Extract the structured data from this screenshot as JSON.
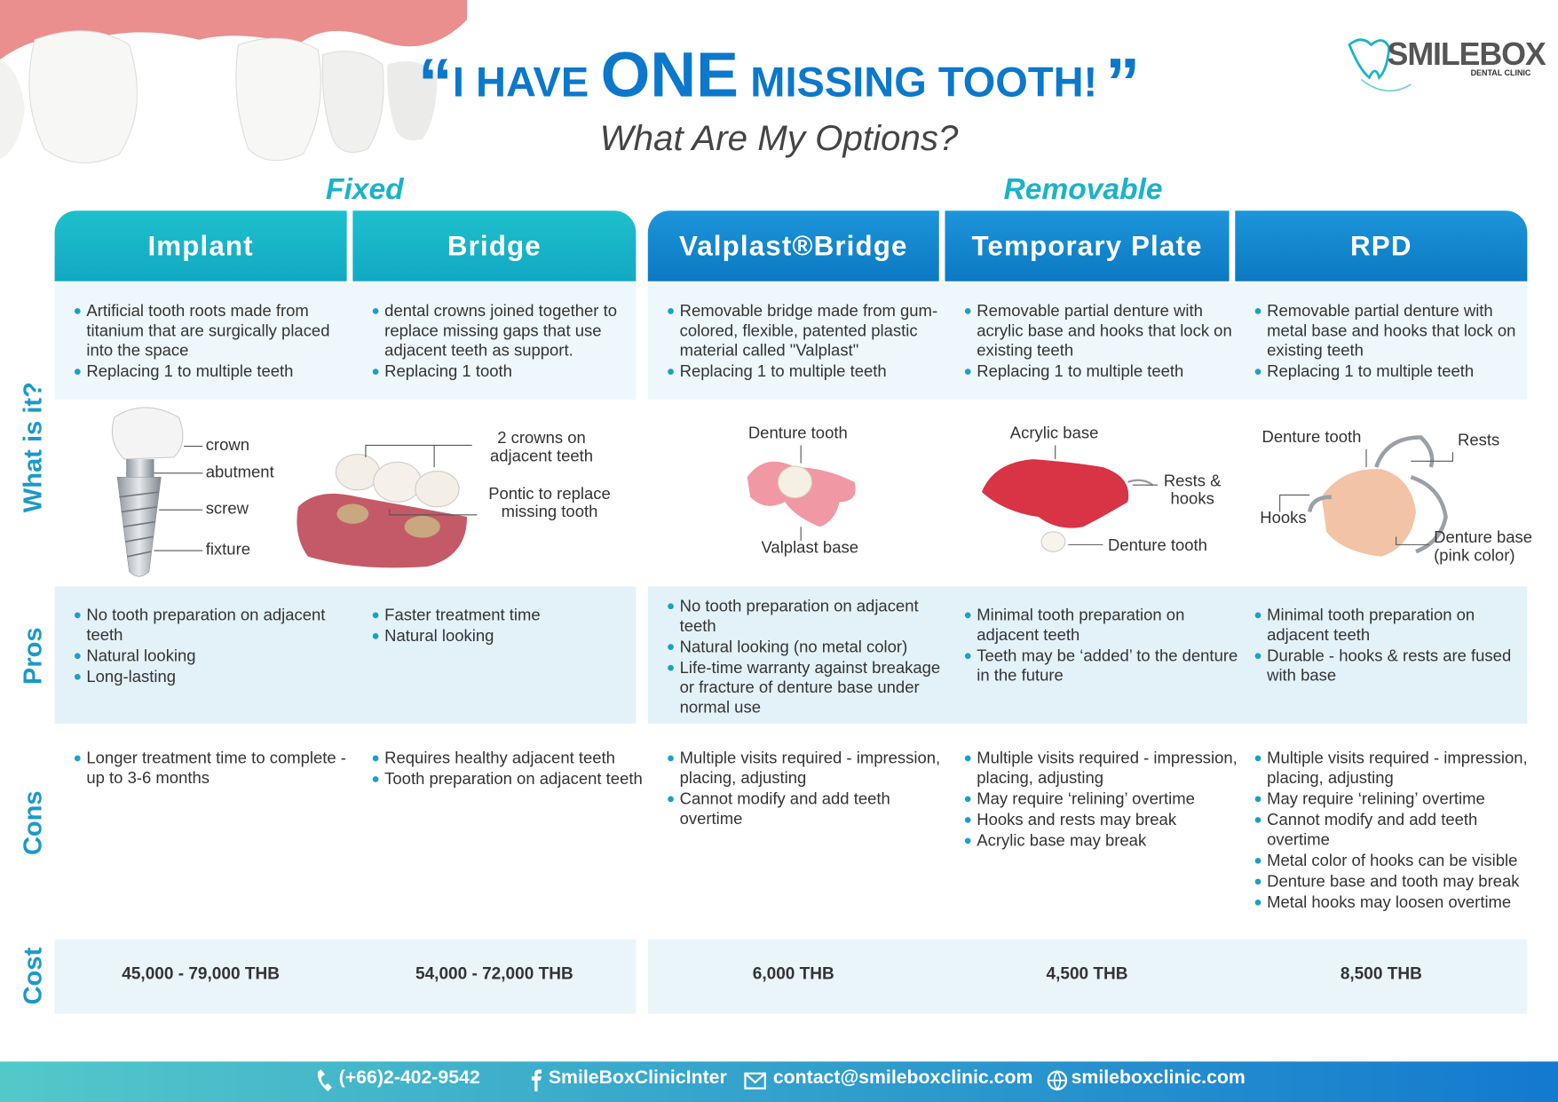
{
  "logo": {
    "name": "SMILEBOX",
    "subtitle": "DENTAL CLINIC"
  },
  "header": {
    "open_quote": "“",
    "title_start": "I HAVE",
    "title_emphasis": "ONE",
    "title_end": "MISSING TOOTH!",
    "close_quote": "”",
    "subtitle": "What Are My Options?"
  },
  "groups": [
    "Fixed",
    "Removable"
  ],
  "row_labels": [
    "What is it?",
    "Pros",
    "Cons",
    "Cost"
  ],
  "columns": [
    {
      "name": "Implant",
      "what": [
        "Artificial tooth roots made from titanium that are surgically placed into the space",
        "Replacing 1 to multiple teeth"
      ],
      "labels": [
        "crown",
        "abutment",
        "screw",
        "fixture"
      ],
      "pros": [
        "No tooth preparation on adjacent teeth",
        "Natural looking",
        "Long-lasting"
      ],
      "cons": [
        "Longer treatment time to complete - up to 3-6 months"
      ],
      "cost": "45,000 - 79,000 THB"
    },
    {
      "name": "Bridge",
      "what": [
        "dental crowns joined together to replace missing gaps that use adjacent teeth as support.",
        "Replacing 1 tooth"
      ],
      "labels": [
        "2 crowns on adjacent teeth",
        "Pontic to replace missing tooth"
      ],
      "pros": [
        "Faster treatment time",
        "Natural looking"
      ],
      "cons": [
        "Requires healthy adjacent teeth",
        "Tooth preparation on adjacent teeth"
      ],
      "cost": "54,000 - 72,000 THB"
    },
    {
      "name": "Valplast®Bridge",
      "what": [
        "Removable bridge made from gum-colored, flexible, patented plastic material called \"Valplast\"",
        "Replacing 1 to multiple teeth"
      ],
      "labels": [
        "Denture tooth",
        "Valplast base"
      ],
      "pros": [
        "No tooth preparation on adjacent teeth",
        "Natural looking (no metal color)",
        "Life-time warranty against breakage or fracture of denture base under normal use"
      ],
      "cons": [
        "Multiple visits required - impression, placing, adjusting",
        "Cannot modify and add teeth overtime"
      ],
      "cost": "6,000 THB"
    },
    {
      "name": "Temporary Plate",
      "what": [
        "Removable partial denture with acrylic base and hooks that lock on existing teeth",
        "Replacing 1 to multiple teeth"
      ],
      "labels": [
        "Acrylic base",
        "Rests & hooks",
        "Denture tooth"
      ],
      "pros": [
        "Minimal tooth preparation on adjacent teeth",
        "Teeth may be ‘added’ to the denture in the future"
      ],
      "cons": [
        "Multiple visits required - impression, placing, adjusting",
        "May require ‘relining’ overtime",
        "Hooks and rests may break",
        "Acrylic base may break"
      ],
      "cost": "4,500 THB"
    },
    {
      "name": "RPD",
      "what": [
        "Removable partial denture with metal base and hooks that lock on existing teeth",
        "Replacing 1 to multiple teeth"
      ],
      "labels": [
        "Denture tooth",
        "Rests",
        "Hooks",
        "Denture base (pink color)"
      ],
      "pros": [
        "Minimal tooth preparation on adjacent teeth",
        "Durable - hooks & rests are fused with base"
      ],
      "cons": [
        "Multiple visits required - impression, placing, adjusting",
        "May require ‘relining’ overtime",
        "Cannot modify and add teeth overtime",
        "Metal color of hooks can be visible",
        "Denture base and tooth may break",
        "Metal hooks may loosen overtime"
      ],
      "cost": "8,500 THB"
    }
  ],
  "footer": [
    "(+66)2-402-9542",
    "SmileBoxClinicInter",
    "contact@smileboxclinic.com",
    "smileboxclinic.com"
  ]
}
